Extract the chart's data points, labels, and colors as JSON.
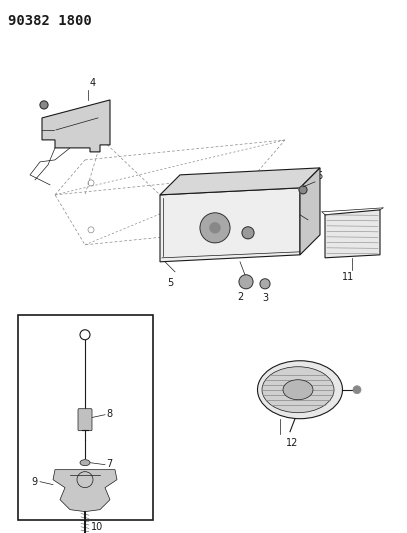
{
  "title": "90382 1800",
  "bg_color": "#ffffff",
  "line_color": "#1a1a1a",
  "gray_color": "#888888",
  "title_fontsize": 10,
  "label_fontsize": 7,
  "fig_width": 4.07,
  "fig_height": 5.33,
  "dpi": 100
}
